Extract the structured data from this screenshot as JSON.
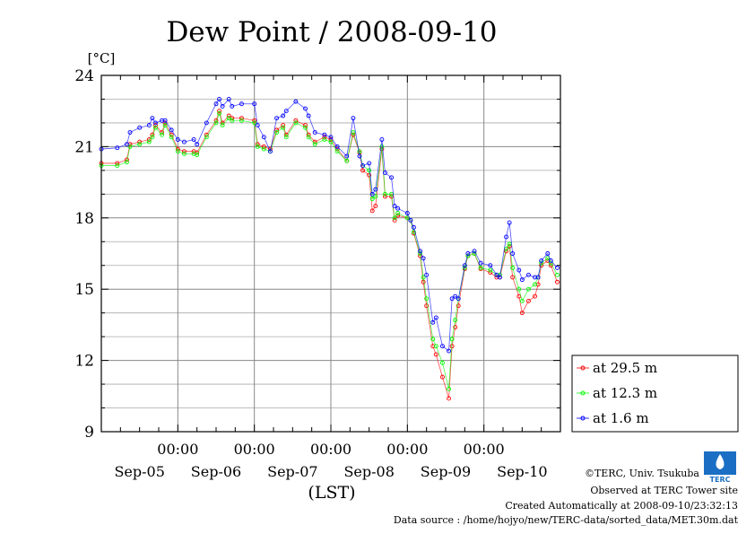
{
  "chart_data": {
    "type": "line",
    "title": "Dew Point / 2008-09-10",
    "ylabel": "[°C]",
    "xlabel": "(LST)",
    "ylim": [
      9,
      24
    ],
    "yticks": [
      9,
      12,
      15,
      18,
      21,
      24
    ],
    "xlim_hours": [
      0,
      144
    ],
    "x_unit": "hours since Sep-05 00:00 (LST)",
    "x_tick_labels": [
      "00:00",
      "00:00",
      "00:00",
      "00:00",
      "00:00"
    ],
    "x_tick_hours": [
      24,
      48,
      72,
      96,
      120
    ],
    "day_labels": [
      "Sep-05",
      "Sep-06",
      "Sep-07",
      "Sep-08",
      "Sep-09",
      "Sep-10"
    ],
    "grid": true,
    "legend_position": "right-bottom-outside",
    "x": [
      0,
      5,
      8,
      9,
      12,
      15,
      16,
      17,
      19,
      20,
      22,
      24,
      26,
      29,
      30,
      33,
      36,
      37,
      38,
      40,
      41,
      44,
      48,
      49,
      51,
      53,
      55,
      57,
      58,
      61,
      64,
      65,
      67,
      70,
      72,
      74,
      77,
      79,
      81,
      82,
      84,
      85,
      86,
      88,
      89,
      91,
      92,
      93,
      96,
      97,
      98,
      100,
      101,
      102,
      104,
      105,
      107,
      109,
      110,
      111,
      112,
      114,
      115,
      117,
      119,
      122,
      124,
      125,
      127,
      128,
      129,
      131,
      132,
      134,
      136,
      137,
      138,
      140,
      141,
      143
    ],
    "series": [
      {
        "name": "at 29.5 m",
        "color": "#ff0000",
        "values": [
          20.3,
          20.3,
          20.45,
          21.1,
          21.2,
          21.3,
          21.5,
          21.9,
          21.6,
          22.0,
          21.5,
          20.9,
          20.8,
          20.8,
          20.75,
          21.5,
          22.1,
          22.5,
          22.0,
          22.3,
          22.2,
          22.2,
          22.1,
          21.1,
          21.0,
          20.9,
          21.7,
          21.9,
          21.5,
          22.1,
          21.9,
          21.5,
          21.2,
          21.4,
          21.3,
          20.9,
          20.4,
          21.5,
          20.75,
          20.0,
          19.8,
          18.3,
          18.5,
          20.9,
          18.9,
          18.9,
          17.9,
          18.1,
          18.0,
          17.9,
          17.35,
          16.4,
          15.3,
          14.3,
          12.6,
          12.25,
          11.3,
          10.4,
          12.6,
          13.4,
          14.3,
          15.85,
          16.4,
          16.5,
          15.85,
          15.7,
          15.5,
          15.5,
          16.6,
          16.8,
          15.5,
          14.7,
          14.0,
          14.5,
          14.7,
          15.2,
          16.0,
          16.2,
          16.0,
          15.3
        ]
      },
      {
        "name": "at 12.3 m",
        "color": "#00ff00",
        "values": [
          20.2,
          20.2,
          20.35,
          21.0,
          21.1,
          21.2,
          21.4,
          21.8,
          21.5,
          21.9,
          21.4,
          20.8,
          20.7,
          20.7,
          20.65,
          21.4,
          22.0,
          22.4,
          21.9,
          22.2,
          22.1,
          22.1,
          22.0,
          21.0,
          20.9,
          20.8,
          21.6,
          21.8,
          21.4,
          22.0,
          21.8,
          21.4,
          21.1,
          21.3,
          21.2,
          20.8,
          20.4,
          21.6,
          20.8,
          20.2,
          20.0,
          18.8,
          18.9,
          21.0,
          19.0,
          19.0,
          18.0,
          18.2,
          18.0,
          17.9,
          17.4,
          16.5,
          15.5,
          14.6,
          12.9,
          12.6,
          11.9,
          10.8,
          12.9,
          13.7,
          14.6,
          15.9,
          16.4,
          16.5,
          15.9,
          15.8,
          15.6,
          15.6,
          16.7,
          16.9,
          15.9,
          15.0,
          14.5,
          15.0,
          15.2,
          15.5,
          16.1,
          16.3,
          16.1,
          15.6
        ]
      },
      {
        "name": "at 1.6 m",
        "color": "#0000ff",
        "values": [
          20.9,
          20.95,
          21.1,
          21.6,
          21.8,
          21.9,
          22.2,
          22.0,
          22.1,
          22.1,
          21.7,
          21.3,
          21.2,
          21.3,
          21.1,
          22.0,
          22.8,
          23.0,
          22.7,
          23.0,
          22.7,
          22.8,
          22.8,
          21.9,
          21.4,
          20.8,
          22.2,
          22.3,
          22.5,
          22.9,
          22.6,
          22.3,
          21.6,
          21.5,
          21.4,
          21.0,
          20.6,
          22.2,
          20.6,
          20.2,
          20.3,
          19.0,
          19.2,
          21.3,
          19.9,
          19.7,
          18.5,
          18.4,
          18.2,
          17.9,
          17.6,
          16.6,
          16.3,
          15.6,
          13.6,
          13.8,
          12.6,
          12.4,
          14.6,
          14.7,
          14.6,
          16.0,
          16.5,
          16.6,
          16.1,
          16.0,
          15.6,
          15.5,
          17.2,
          17.8,
          16.5,
          15.8,
          15.4,
          15.6,
          15.5,
          15.5,
          16.2,
          16.5,
          16.2,
          15.9
        ]
      }
    ]
  },
  "footer": {
    "copyright": "©TERC, Univ. Tsukuba",
    "site": "Observed at TERC Tower site",
    "created": "Created Automatically at 2008-09-10/23:32:13",
    "source": "Data source : /home/hojyo/new/TERC-data/sorted_data/MET.30m.dat",
    "logo_text": "TERC"
  }
}
